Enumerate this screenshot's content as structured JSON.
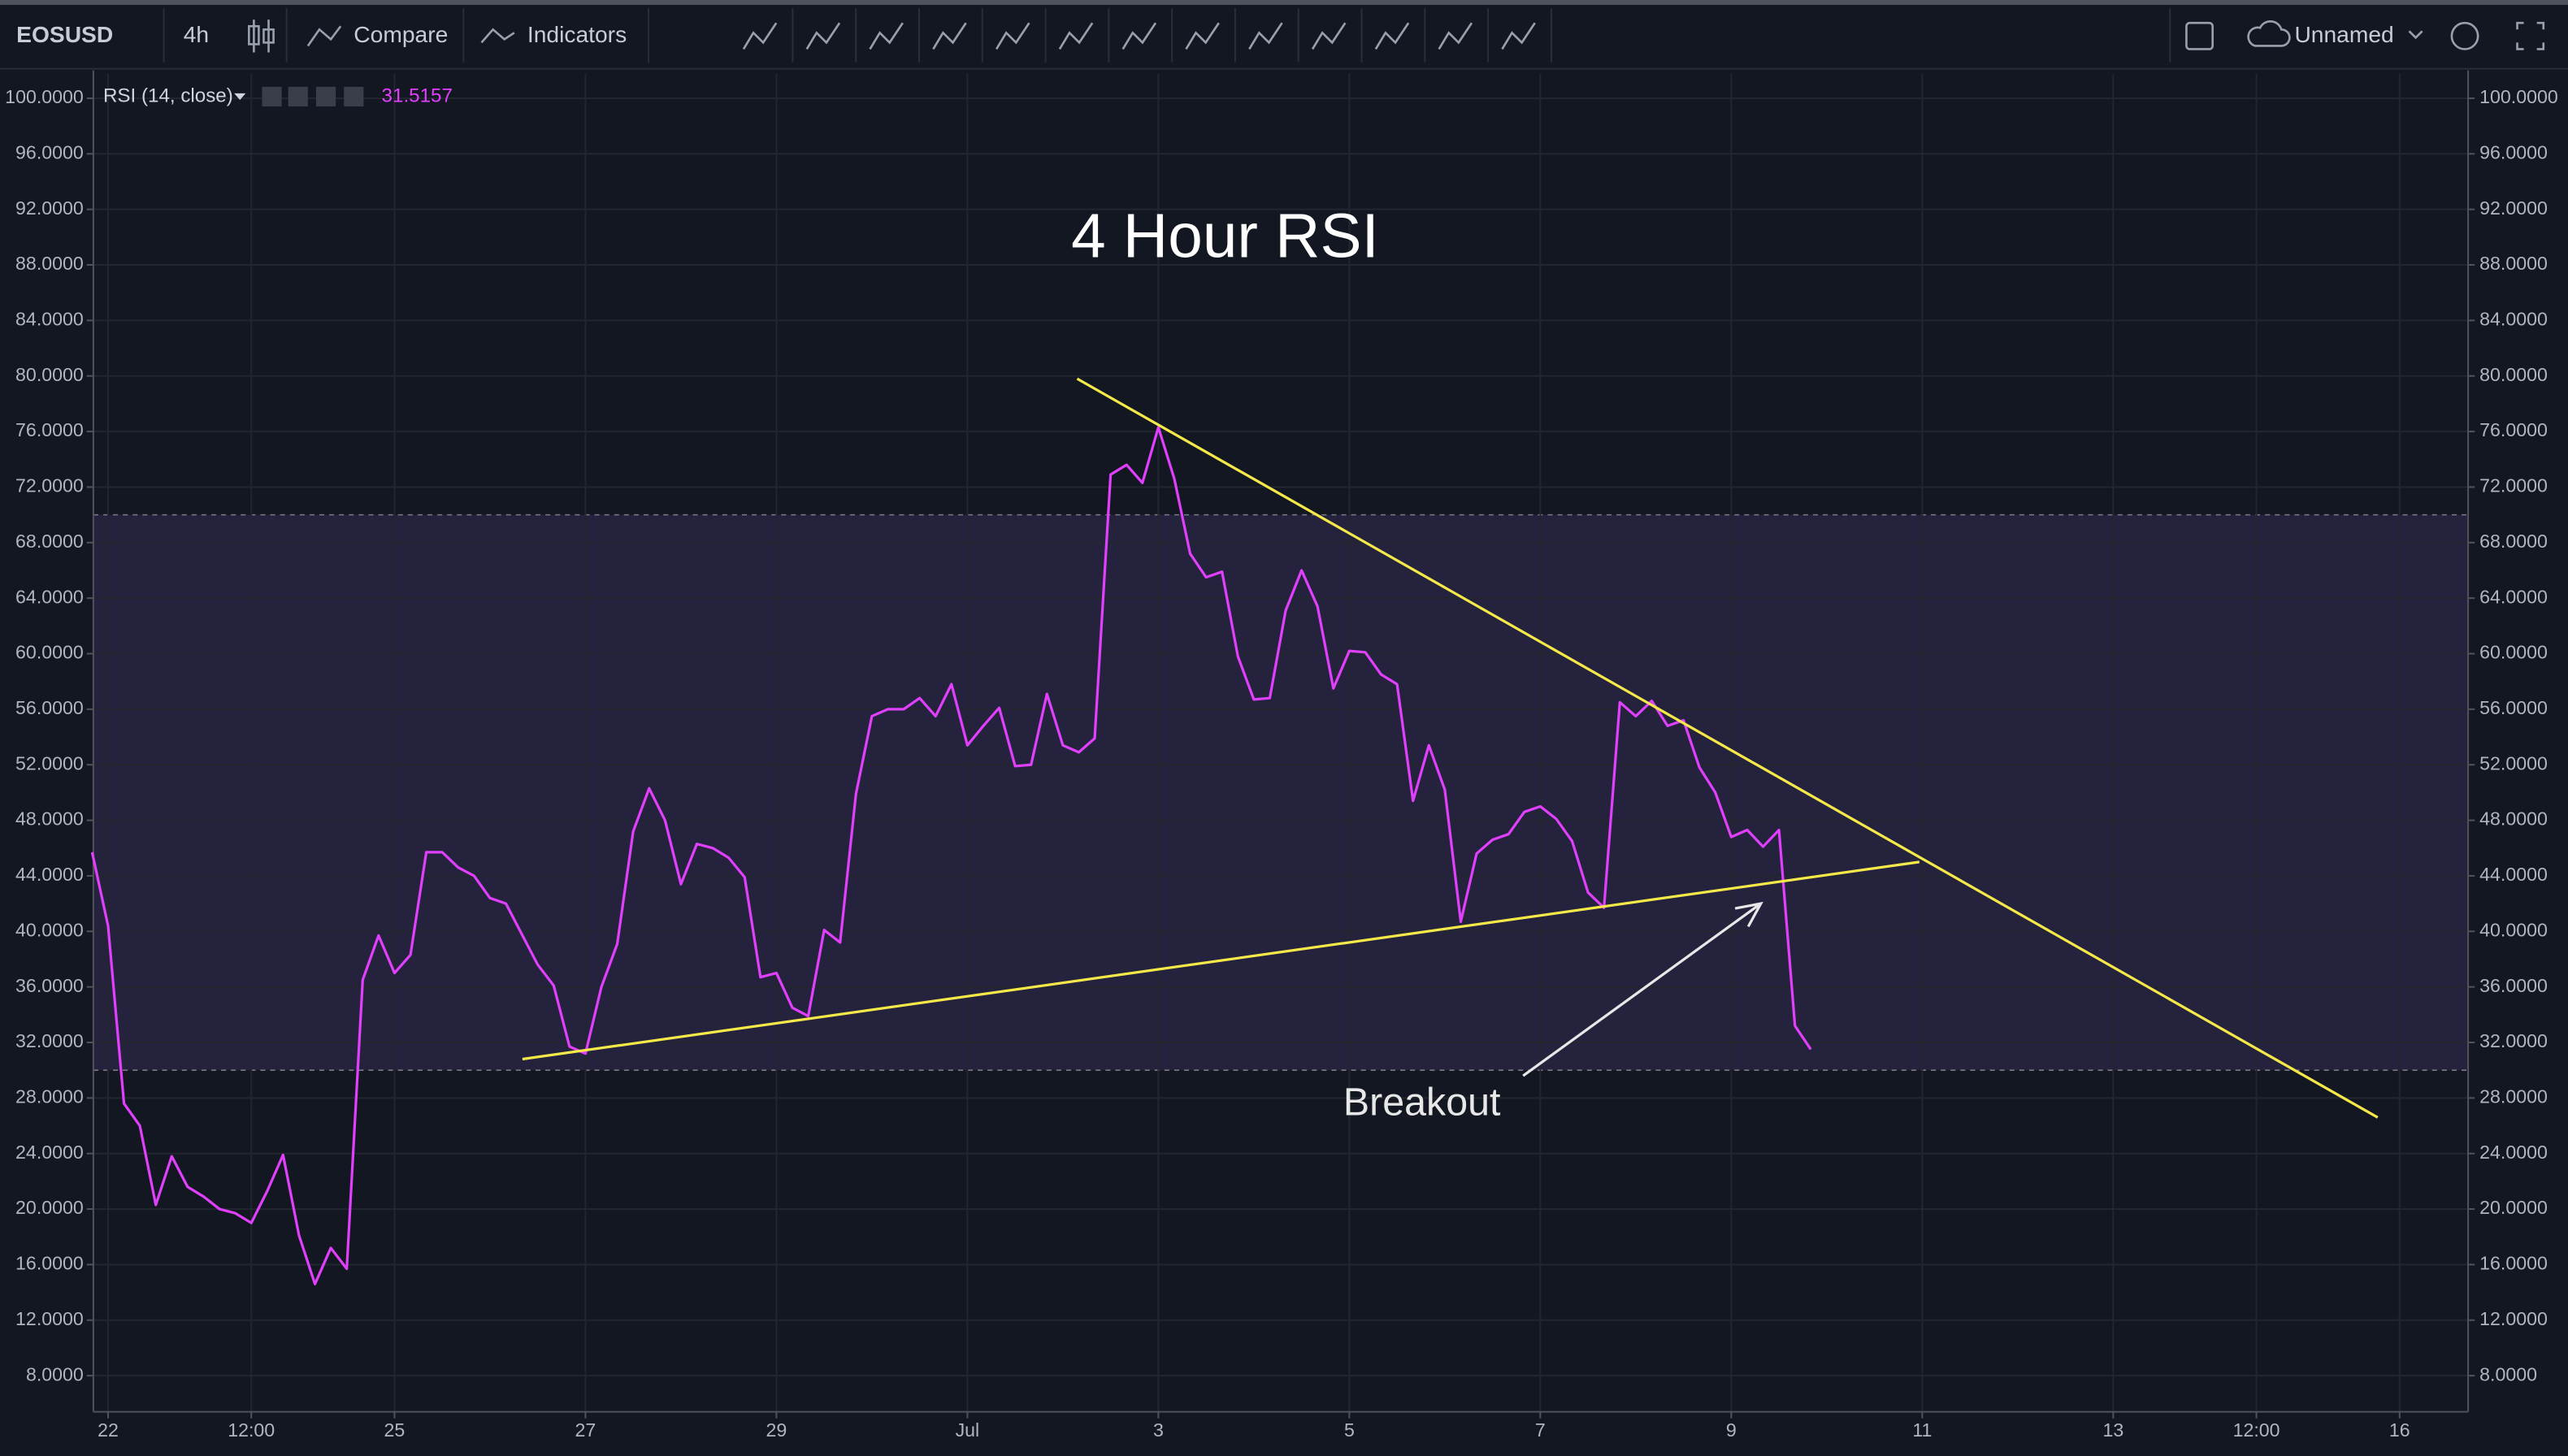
{
  "toolbar": {
    "symbol": "EOSUSD",
    "interval": "4h",
    "compare": "Compare",
    "indicators": "Indicators",
    "layout_name": "Unnamed"
  },
  "chart_data": {
    "type": "line",
    "title": "4 Hour RSI",
    "legend_value": "31.5157",
    "x": [
      -0.167,
      0,
      0.167,
      0.333,
      0.5,
      0.667,
      0.833,
      1,
      1.167,
      1.333,
      1.5,
      1.667,
      1.833,
      2,
      2.167,
      2.333,
      2.5,
      2.667,
      2.833,
      3,
      3.167,
      3.333,
      3.5,
      3.667,
      3.833,
      4,
      4.167,
      4.333,
      4.5,
      4.667,
      4.833,
      5,
      5.167,
      5.333,
      5.5,
      5.667,
      5.833,
      6,
      6.167,
      6.333,
      6.5,
      6.667,
      6.833,
      7,
      7.167,
      7.333,
      7.5,
      7.667,
      7.833,
      8,
      8.167,
      8.333,
      8.5,
      8.667,
      8.833,
      9,
      9.167,
      9.333,
      9.5,
      9.667,
      9.833,
      10,
      10.167,
      10.333,
      10.5,
      10.667,
      10.833,
      11,
      11.167,
      11.333,
      11.5,
      11.667,
      11.833,
      12,
      12.167,
      12.333,
      12.5,
      12.667,
      12.833,
      13,
      13.167,
      13.333,
      13.5,
      13.667,
      13.833,
      14,
      14.167,
      14.333,
      14.5,
      14.667,
      14.833,
      15,
      15.167,
      15.333,
      15.5,
      15.667,
      15.833,
      16,
      16.167,
      16.333,
      16.5,
      16.667,
      16.833,
      17,
      17.167,
      17.333,
      17.5,
      17.667,
      17.833
    ],
    "series": [
      {
        "name": "RSI (14, close)",
        "color": "#e040fb",
        "values": [
          45.7,
          40.4,
          27.6,
          26,
          20.3,
          23.8,
          21.6,
          20.9,
          20,
          19.7,
          19,
          21.3,
          23.9,
          18.1,
          14.6,
          17.2,
          15.7,
          36.5,
          39.7,
          37,
          38.3,
          45.7,
          45.7,
          44.6,
          44,
          42.4,
          42,
          39.8,
          37.6,
          36.1,
          31.7,
          31.2,
          36,
          39.1,
          47.2,
          50.3,
          48,
          43.4,
          46.3,
          46,
          45.3,
          43.9,
          36.7,
          37,
          34.5,
          33.9,
          40.1,
          39.2,
          49.9,
          55.5,
          56,
          56,
          56.8,
          55.5,
          57.8,
          53.4,
          54.8,
          56.1,
          51.9,
          52,
          57.1,
          53.4,
          52.9,
          53.9,
          72.9,
          73.6,
          72.3,
          76.3,
          72.6,
          67.2,
          65.5,
          65.9,
          59.8,
          56.7,
          56.8,
          63.1,
          66,
          63.4,
          57.5,
          60.2,
          60.1,
          58.5,
          57.8,
          49.4,
          53.4,
          50.2,
          40.7,
          45.6,
          46.6,
          47,
          48.6,
          49,
          48.1,
          46.5,
          42.8,
          41.7,
          56.5,
          55.5,
          56.6,
          54.8,
          55.2,
          51.8,
          50,
          46.8,
          47.3,
          46.1,
          47.3,
          33.2,
          31.5
        ]
      }
    ],
    "xlim": [
      -0.154,
      24.717
    ],
    "xticks": [
      {
        "value": 0,
        "label": "22"
      },
      {
        "value": 1.5,
        "label": "12:00"
      },
      {
        "value": 3,
        "label": "25"
      },
      {
        "value": 5,
        "label": "27"
      },
      {
        "value": 7,
        "label": "29"
      },
      {
        "value": 9,
        "label": "Jul"
      },
      {
        "value": 11,
        "label": "3"
      },
      {
        "value": 13,
        "label": "5"
      },
      {
        "value": 15,
        "label": "7"
      },
      {
        "value": 17,
        "label": "9"
      },
      {
        "value": 19,
        "label": "11"
      },
      {
        "value": 21,
        "label": "13"
      },
      {
        "value": 22.5,
        "label": "12:00"
      },
      {
        "value": 24,
        "label": "16"
      }
    ],
    "ylim": [
      5.4,
      101.77
    ],
    "yticks": [
      {
        "value": 8,
        "label": "8.0000"
      },
      {
        "value": 12,
        "label": "12.0000"
      },
      {
        "value": 16,
        "label": "16.0000"
      },
      {
        "value": 20,
        "label": "20.0000"
      },
      {
        "value": 24,
        "label": "24.0000"
      },
      {
        "value": 28,
        "label": "28.0000"
      },
      {
        "value": 32,
        "label": "32.0000"
      },
      {
        "value": 36,
        "label": "36.0000"
      },
      {
        "value": 40,
        "label": "40.0000"
      },
      {
        "value": 44,
        "label": "44.0000"
      },
      {
        "value": 48,
        "label": "48.0000"
      },
      {
        "value": 52,
        "label": "52.0000"
      },
      {
        "value": 56,
        "label": "56.0000"
      },
      {
        "value": 60,
        "label": "60.0000"
      },
      {
        "value": 64,
        "label": "64.0000"
      },
      {
        "value": 68,
        "label": "68.0000"
      },
      {
        "value": 72,
        "label": "72.0000"
      },
      {
        "value": 76,
        "label": "76.0000"
      },
      {
        "value": 80,
        "label": "80.0000"
      },
      {
        "value": 84,
        "label": "84.0000"
      },
      {
        "value": 88,
        "label": "88.0000"
      },
      {
        "value": 92,
        "label": "92.0000"
      },
      {
        "value": 96,
        "label": "96.0000"
      },
      {
        "value": 100,
        "label": "100.0000"
      }
    ],
    "grid": true,
    "bands": {
      "upper": 70,
      "lower": 30,
      "color": "#7e57c2"
    },
    "trendlines": [
      {
        "color": "#f5e94a",
        "x": [
          10.15,
          23.77
        ],
        "y": [
          79.8,
          26.6
        ]
      },
      {
        "color": "#f5e94a",
        "x": [
          4.34,
          18.97
        ],
        "y": [
          30.8,
          45.0
        ]
      }
    ],
    "annotations": [
      {
        "text": "Breakout",
        "x": 13.76,
        "y": 27.5,
        "color": "#e8e8e8",
        "arrow": {
          "x": [
            14.82,
            17.31
          ],
          "y": [
            29.6,
            42.0
          ]
        }
      }
    ]
  }
}
